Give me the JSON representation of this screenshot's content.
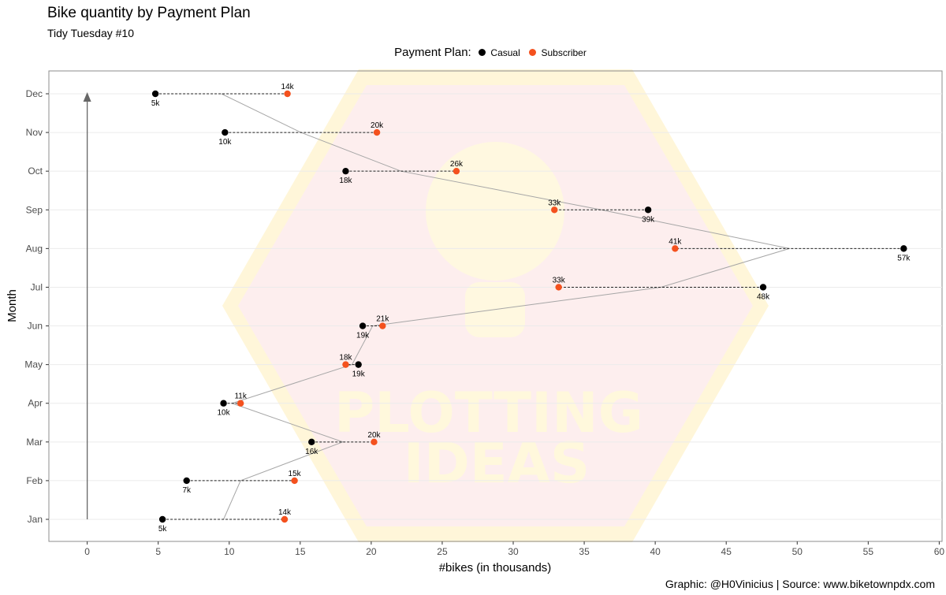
{
  "header": {
    "title": "Bike quantity by Payment Plan",
    "subtitle": "Tidy Tuesday #10"
  },
  "legend": {
    "title": "Payment Plan:",
    "position": "top-center",
    "items": [
      {
        "label": "Casual",
        "color": "#000000"
      },
      {
        "label": "Subscriber",
        "color": "#f4511e"
      }
    ]
  },
  "caption": "Graphic: @H0Vinicius | Source: www.biketownpdx.com",
  "watermark": {
    "line1": "PLOTTING",
    "line2": "IDEAS"
  },
  "chart_data": {
    "type": "scatter",
    "title": "Bike quantity by Payment Plan",
    "subtitle": "Tidy Tuesday #10",
    "xlabel": "#bikes (in thousands)",
    "ylabel": "Month",
    "xlim": [
      -2.7,
      60.2
    ],
    "xticks": [
      0,
      5,
      10,
      15,
      20,
      25,
      30,
      35,
      40,
      45,
      50,
      55,
      60
    ],
    "categories": [
      "Jan",
      "Feb",
      "Mar",
      "Apr",
      "May",
      "Jun",
      "Jul",
      "Aug",
      "Sep",
      "Oct",
      "Nov",
      "Dec"
    ],
    "grid": true,
    "series": [
      {
        "name": "Casual",
        "color": "#000000",
        "values": [
          5.3,
          7.0,
          15.8,
          9.6,
          19.1,
          19.4,
          47.6,
          57.5,
          39.5,
          18.2,
          9.7,
          4.8
        ],
        "labels": [
          "5k",
          "7k",
          "16k",
          "10k",
          "19k",
          "19k",
          "48k",
          "57k",
          "39k",
          "18k",
          "10k",
          "5k"
        ]
      },
      {
        "name": "Subscriber",
        "color": "#f4511e",
        "values": [
          13.9,
          14.6,
          20.2,
          10.8,
          18.2,
          20.8,
          33.2,
          41.4,
          32.9,
          26.0,
          20.4,
          14.1
        ],
        "labels": [
          "14k",
          "15k",
          "20k",
          "11k",
          "18k",
          "21k",
          "33k",
          "41k",
          "33k",
          "26k",
          "20k",
          "14k"
        ]
      }
    ],
    "midpoint_line_color": "#a6a6a6",
    "connector_style": "dashed",
    "arrow": {
      "x": 0,
      "from": "Jan",
      "to": "Dec",
      "color": "#666666"
    }
  }
}
